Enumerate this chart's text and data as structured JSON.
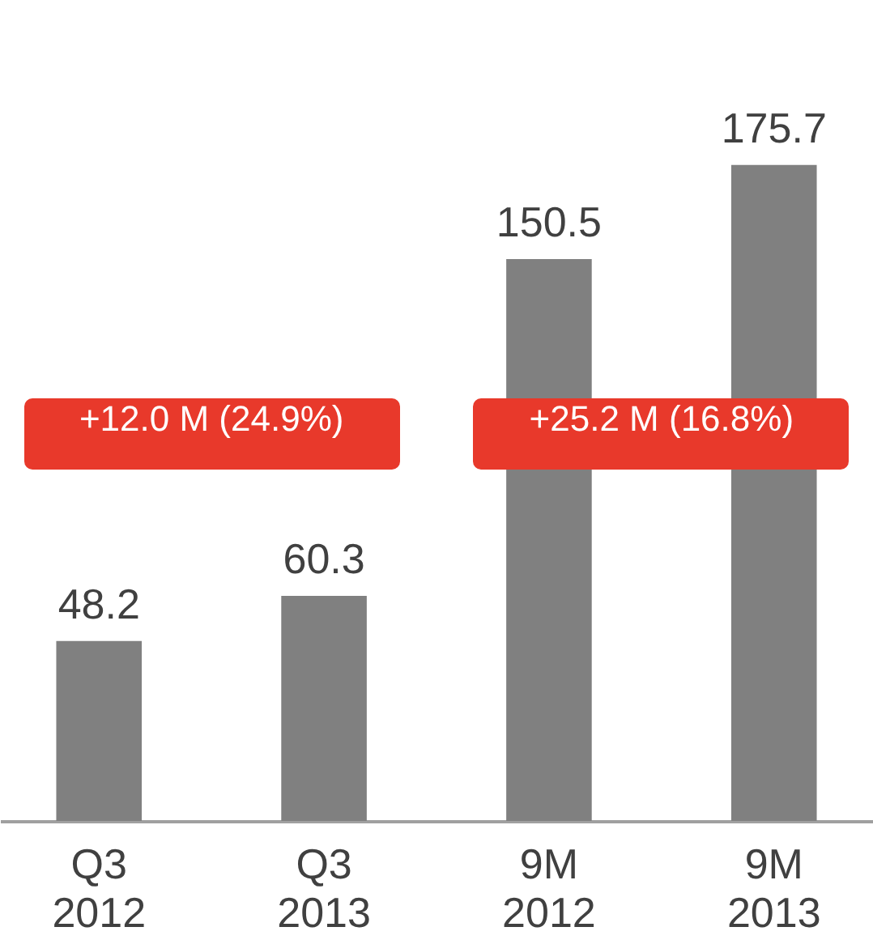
{
  "chart_data": {
    "type": "bar",
    "categories": [
      "Q3 2012",
      "Q3 2013",
      "9M 2012",
      "9M 2013"
    ],
    "values": [
      48.2,
      60.3,
      150.5,
      175.7
    ],
    "color": "#808080",
    "data_labels": true,
    "annotations": [
      "+12.0 M (24.9%)",
      "+25.2 M (16.8%)"
    ]
  }
}
